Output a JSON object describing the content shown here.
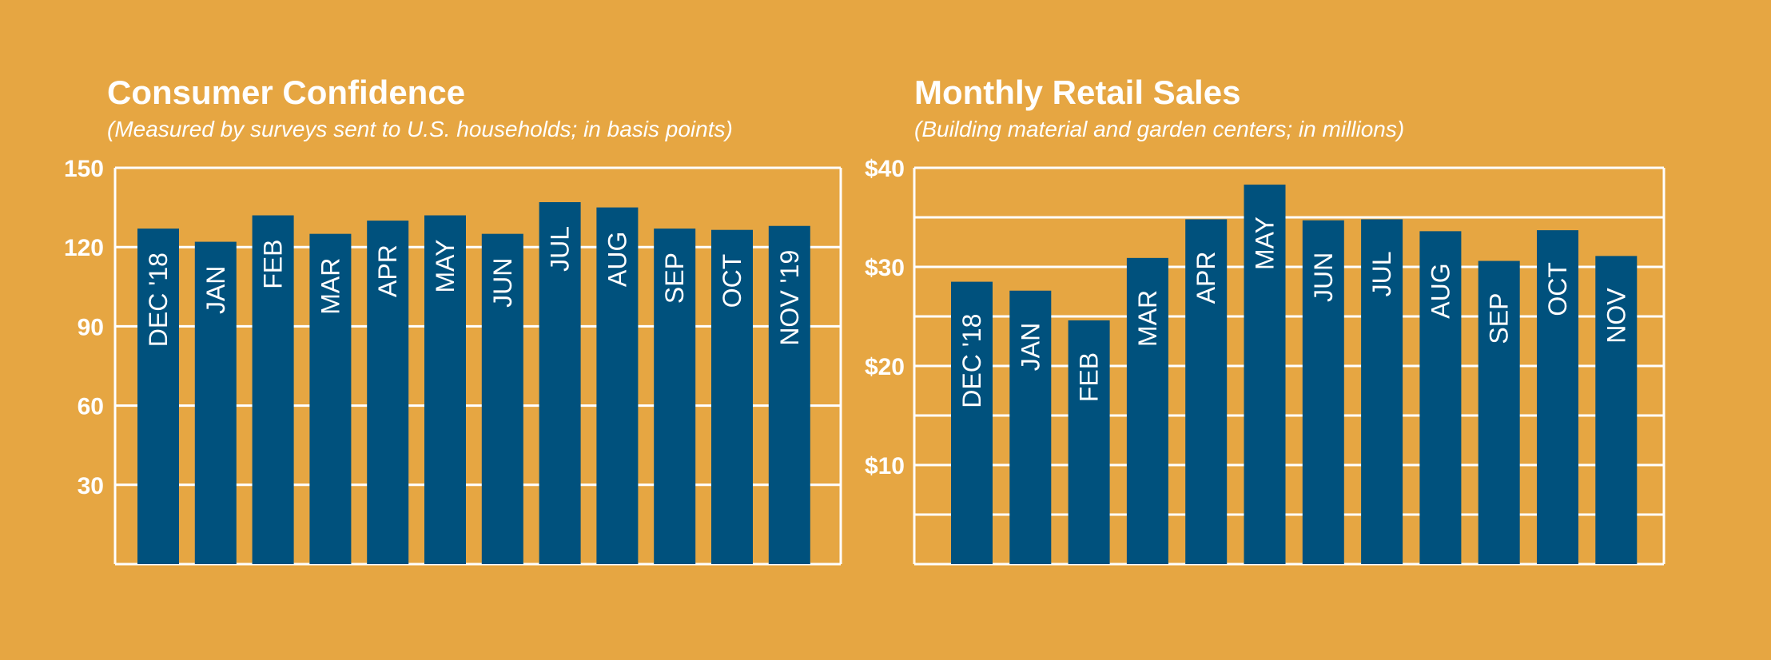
{
  "colors": {
    "background": "#E6A642",
    "bar": "#00517D",
    "grid": "#ffffff",
    "text": "#ffffff"
  },
  "chart_data": [
    {
      "type": "bar",
      "title": "Consumer Confidence",
      "subtitle": "(Measured by surveys sent to U.S. households; in basis points)",
      "categories": [
        "DEC '18",
        "JAN",
        "FEB",
        "MAR",
        "APR",
        "MAY",
        "JUN",
        "JUL",
        "AUG",
        "SEP",
        "OCT",
        "NOV '19"
      ],
      "values": [
        127,
        122,
        132,
        125,
        130,
        132,
        125,
        137,
        135,
        127,
        126.5,
        128
      ],
      "ylim": [
        0,
        150
      ],
      "yticks": [
        30,
        60,
        90,
        120,
        150
      ],
      "ytick_labels": [
        "30",
        "60",
        "90",
        "120",
        "150"
      ],
      "grid_lines": [
        30,
        60,
        90,
        120,
        150
      ],
      "grid": true,
      "xlabel": "",
      "ylabel": ""
    },
    {
      "type": "bar",
      "title": "Monthly Retail Sales",
      "subtitle": "(Building material and garden centers; in millions)",
      "categories": [
        "DEC '18",
        "JAN",
        "FEB",
        "MAR",
        "APR",
        "MAY",
        "JUN",
        "JUL",
        "AUG",
        "SEP",
        "OCT",
        "NOV"
      ],
      "values": [
        28.5,
        27.6,
        24.6,
        30.9,
        34.8,
        38.3,
        34.7,
        34.8,
        33.6,
        30.6,
        33.7,
        31.1
      ],
      "ylim": [
        0,
        40
      ],
      "yticks": [
        10,
        20,
        30,
        40
      ],
      "ytick_labels": [
        "$10",
        "$20",
        "$30",
        "$40"
      ],
      "grid_lines": [
        5,
        10,
        15,
        20,
        25,
        30,
        35,
        40
      ],
      "grid": true,
      "xlabel": "",
      "ylabel": ""
    }
  ]
}
